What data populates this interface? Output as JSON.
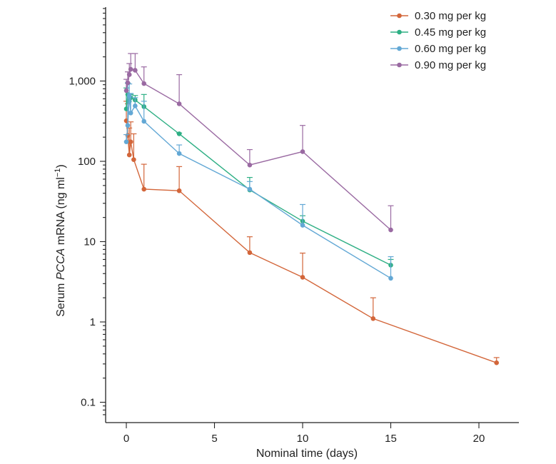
{
  "chart_data": {
    "type": "line",
    "title": "",
    "xlabel": "Nominal time (days)",
    "ylabel": {
      "prefix": "Serum ",
      "gene": "PCCA",
      "suffix": " mRNA (ng ml",
      "exponent": "−1",
      "close": ")"
    },
    "yscale": "log",
    "xlim": [
      -1.2,
      22.5
    ],
    "ylim": [
      0.065,
      9000
    ],
    "x_ticks": [
      0,
      5,
      10,
      15,
      20
    ],
    "x_tick_labels": [
      "0",
      "5",
      "10",
      "15",
      "20"
    ],
    "y_ticks": [
      0.1,
      1,
      10,
      100,
      1000
    ],
    "y_tick_labels": [
      "0.1",
      "1",
      "10",
      "100",
      "1,000"
    ],
    "legend_position": "top-right",
    "series": [
      {
        "name": "0.30 mg per kg",
        "color": "#d3663a",
        "x": [
          0,
          0.08,
          0.17,
          0.25,
          0.42,
          1,
          3,
          7,
          10,
          14,
          21
        ],
        "y": [
          320,
          210,
          120,
          175,
          105,
          45,
          43,
          7.3,
          3.6,
          1.1,
          0.31
        ],
        "error_upper": [
          560,
          520,
          260,
          310,
          220,
          92,
          86,
          11.5,
          7.2,
          2.0,
          0.36
        ]
      },
      {
        "name": "0.45 mg per kg",
        "color": "#2eaf84",
        "x": [
          0,
          0.08,
          0.17,
          0.25,
          0.5,
          1,
          3,
          7,
          10,
          15
        ],
        "y": [
          450,
          680,
          560,
          620,
          580,
          480,
          220,
          44,
          18,
          5.1
        ],
        "error_upper": [
          820,
          940,
          680,
          680,
          660,
          680,
          225,
          63,
          21,
          6.0
        ]
      },
      {
        "name": "0.60 mg per kg",
        "color": "#63a8d5",
        "x": [
          0,
          0.08,
          0.17,
          0.25,
          0.5,
          1,
          3,
          7,
          10,
          15
        ],
        "y": [
          175,
          280,
          650,
          400,
          490,
          315,
          125,
          45,
          16,
          3.5
        ],
        "error_upper": [
          215,
          950,
          920,
          700,
          620,
          560,
          160,
          56,
          29,
          6.5
        ]
      },
      {
        "name": "0.90 mg per kg",
        "color": "#9a6aa2",
        "x": [
          0,
          0.08,
          0.17,
          0.25,
          0.5,
          1,
          3,
          7,
          10,
          15
        ],
        "y": [
          760,
          950,
          1200,
          1400,
          1360,
          930,
          520,
          90,
          132,
          14
        ],
        "error_upper": [
          1050,
          1300,
          1650,
          2200,
          2200,
          1500,
          1200,
          140,
          280,
          28
        ]
      }
    ]
  }
}
